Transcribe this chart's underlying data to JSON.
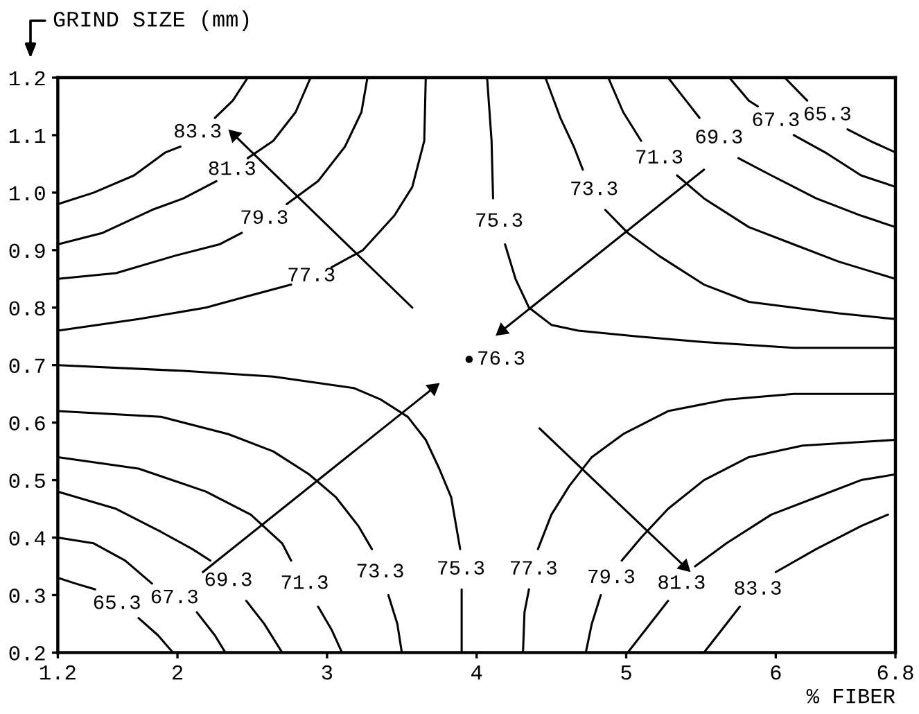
{
  "chart_data": {
    "type": "line",
    "xlabel": "% FIBER",
    "ylabel": "GRIND SIZE (mm)",
    "xlim": [
      1.2,
      6.8
    ],
    "ylim": [
      0.2,
      1.2
    ],
    "xticks": [
      1.2,
      2,
      3,
      4,
      5,
      6,
      6.8
    ],
    "yticks": [
      0.2,
      0.3,
      0.4,
      0.5,
      0.6,
      0.7,
      0.8,
      0.9,
      {
        "value": 1,
        "label": "1.0"
      },
      1.1,
      1.2
    ],
    "series": [
      {
        "name": "83.3",
        "color": "#000000",
        "x": [
          1.2,
          1.44,
          1.71,
          1.92,
          2.02,
          null,
          2.25,
          2.37,
          2.47
        ],
        "values": [
          0.98,
          1.0,
          1.03,
          1.07,
          1.08,
          null,
          1.13,
          1.16,
          1.2
        ]
      },
      {
        "name": "81.3",
        "color": "#000000",
        "x": [
          1.2,
          1.5,
          1.83,
          2.04,
          2.26,
          null,
          2.47,
          2.64,
          2.79,
          2.89
        ],
        "values": [
          0.91,
          0.93,
          0.97,
          0.99,
          1.02,
          null,
          1.06,
          1.09,
          1.14,
          1.2
        ]
      },
      {
        "name": "79.3",
        "color": "#000000",
        "x": [
          1.2,
          1.59,
          1.98,
          2.28,
          2.43,
          null,
          2.73,
          2.94,
          3.12,
          3.23,
          3.27
        ],
        "values": [
          0.85,
          0.86,
          0.89,
          0.91,
          0.93,
          null,
          0.98,
          1.02,
          1.08,
          1.14,
          1.2
        ]
      },
      {
        "name": "77.3",
        "color": "#000000",
        "x": [
          1.2,
          1.74,
          2.19,
          2.47,
          2.76,
          null,
          3.03,
          3.24,
          3.45,
          3.57,
          3.65,
          3.66
        ],
        "values": [
          0.76,
          0.78,
          0.8,
          0.82,
          0.84,
          null,
          0.87,
          0.9,
          0.96,
          1.01,
          1.09,
          1.2
        ]
      },
      {
        "name": "75.3",
        "color": "#000000",
        "x": [
          4.07,
          4.1,
          4.11,
          null,
          4.19,
          4.26,
          4.35,
          4.5,
          4.68,
          5.07,
          5.52,
          6.12,
          6.8
        ],
        "values": [
          1.2,
          1.09,
          0.99,
          null,
          0.91,
          0.85,
          0.8,
          0.77,
          0.76,
          0.75,
          0.74,
          0.73,
          0.73
        ]
      },
      {
        "name": "73.3",
        "color": "#000000",
        "x": [
          4.46,
          4.56,
          4.65,
          4.71,
          null,
          4.86,
          5.01,
          5.22,
          5.52,
          5.82,
          6.12,
          6.42,
          6.8
        ],
        "values": [
          1.2,
          1.13,
          1.08,
          1.04,
          null,
          0.97,
          0.93,
          0.89,
          0.84,
          0.81,
          0.8,
          0.79,
          0.78
        ]
      },
      {
        "name": "71.3",
        "color": "#000000",
        "x": [
          4.88,
          4.98,
          5.1,
          null,
          5.34,
          5.52,
          5.82,
          6.12,
          6.42,
          6.8
        ],
        "values": [
          1.2,
          1.14,
          1.09,
          null,
          1.03,
          0.99,
          0.94,
          0.91,
          0.88,
          0.85
        ]
      },
      {
        "name": "69.3",
        "color": "#000000",
        "x": [
          5.28,
          5.4,
          5.49,
          null,
          5.75,
          5.97,
          6.27,
          6.57,
          6.8
        ],
        "values": [
          1.2,
          1.16,
          1.13,
          null,
          1.06,
          1.03,
          0.99,
          0.96,
          0.94
        ]
      },
      {
        "name": "67.3",
        "color": "#000000",
        "x": [
          5.69,
          5.82,
          5.88,
          null,
          6.12,
          6.33,
          6.57,
          6.8
        ],
        "values": [
          1.2,
          1.16,
          1.15,
          null,
          1.1,
          1.07,
          1.03,
          1.01
        ]
      },
      {
        "name": "65.3",
        "color": "#000000",
        "x": [
          6.06,
          6.21,
          null,
          6.48,
          6.63,
          6.8
        ],
        "values": [
          1.2,
          1.16,
          null,
          1.11,
          1.09,
          1.07
        ]
      },
      {
        "name": "75.3",
        "color": "#000000",
        "x": [
          1.2,
          2.04,
          2.64,
          3.18,
          3.36,
          3.54,
          3.66,
          3.75,
          3.83,
          3.87,
          3.89,
          null,
          3.9,
          3.9
        ],
        "values": [
          0.7,
          0.69,
          0.68,
          0.66,
          0.64,
          0.61,
          0.57,
          0.52,
          0.47,
          0.41,
          0.38,
          null,
          0.31,
          0.2
        ]
      },
      {
        "name": "73.3",
        "color": "#000000",
        "x": [
          1.2,
          1.89,
          2.34,
          2.64,
          2.88,
          3.06,
          3.21,
          3.3,
          null,
          3.41,
          3.47,
          3.5
        ],
        "values": [
          0.62,
          0.61,
          0.58,
          0.55,
          0.51,
          0.47,
          0.42,
          0.38,
          null,
          0.3,
          0.25,
          0.2
        ]
      },
      {
        "name": "71.3",
        "color": "#000000",
        "x": [
          1.2,
          1.74,
          2.19,
          2.49,
          2.7,
          2.76,
          null,
          2.94,
          3.03,
          3.1
        ],
        "values": [
          0.54,
          0.52,
          0.48,
          0.44,
          0.39,
          0.36,
          null,
          0.28,
          0.24,
          0.2
        ]
      },
      {
        "name": "69.3",
        "color": "#000000",
        "x": [
          1.2,
          1.59,
          1.89,
          2.1,
          2.22,
          null,
          2.46,
          2.58,
          2.7
        ],
        "values": [
          0.48,
          0.45,
          0.41,
          0.38,
          0.36,
          null,
          0.29,
          0.25,
          0.2
        ]
      },
      {
        "name": "67.3",
        "color": "#000000",
        "x": [
          1.2,
          1.44,
          1.65,
          1.83,
          null,
          2.13,
          2.25,
          2.32
        ],
        "values": [
          0.4,
          0.39,
          0.36,
          0.32,
          null,
          0.27,
          0.23,
          0.2
        ]
      },
      {
        "name": "65.3",
        "color": "#000000",
        "x": [
          1.2,
          1.32,
          1.45,
          null,
          1.74,
          1.87,
          1.97
        ],
        "values": [
          0.33,
          0.32,
          0.31,
          null,
          0.26,
          0.23,
          0.2
        ]
      },
      {
        "name": "77.3",
        "color": "#000000",
        "x": [
          4.31,
          4.32,
          4.35,
          null,
          4.41,
          4.5,
          4.62,
          4.77,
          4.98,
          5.28,
          5.67,
          6.12,
          6.8
        ],
        "values": [
          0.2,
          0.27,
          0.31,
          null,
          0.38,
          0.44,
          0.49,
          0.54,
          0.58,
          0.62,
          0.64,
          0.65,
          0.65
        ]
      },
      {
        "name": "79.3",
        "color": "#000000",
        "x": [
          4.73,
          4.77,
          4.83,
          null,
          4.97,
          5.1,
          5.28,
          5.52,
          5.82,
          6.18,
          6.8
        ],
        "values": [
          0.2,
          0.25,
          0.3,
          null,
          0.36,
          0.4,
          0.45,
          0.5,
          0.54,
          0.56,
          0.57
        ]
      },
      {
        "name": "81.3",
        "color": "#000000",
        "x": [
          5.01,
          5.13,
          5.28,
          null,
          5.46,
          5.67,
          5.97,
          6.27,
          6.57,
          6.8
        ],
        "values": [
          0.2,
          0.24,
          0.29,
          null,
          0.35,
          0.39,
          0.44,
          0.47,
          0.5,
          0.51
        ]
      },
      {
        "name": "83.3",
        "color": "#000000",
        "x": [
          5.52,
          5.64,
          5.76,
          null,
          6.0,
          6.27,
          6.57,
          6.75
        ],
        "values": [
          0.2,
          0.24,
          0.28,
          null,
          0.34,
          0.38,
          0.42,
          0.44
        ]
      },
      {
        "type": "scatter",
        "marker": "circle",
        "color": "#000000",
        "x": [
          3.95
        ],
        "values": [
          0.71
        ]
      },
      {
        "marker": "triangle",
        "color": "#000000",
        "x": [
          3.57,
          2.38
        ],
        "values": [
          0.8,
          1.1
        ]
      },
      {
        "marker": "triangle",
        "color": "#000000",
        "x": [
          5.52,
          4.17
        ],
        "values": [
          1.04,
          0.76
        ]
      },
      {
        "marker": "triangle",
        "color": "#000000",
        "x": [
          2.17,
          3.71
        ],
        "values": [
          0.34,
          0.66
        ]
      },
      {
        "marker": "triangle",
        "color": "#000000",
        "x": [
          4.42,
          5.39
        ],
        "values": [
          0.59,
          0.35
        ]
      }
    ],
    "annotations": [
      {
        "text": "76.3",
        "x": 3.95,
        "y": 0.71
      }
    ]
  }
}
